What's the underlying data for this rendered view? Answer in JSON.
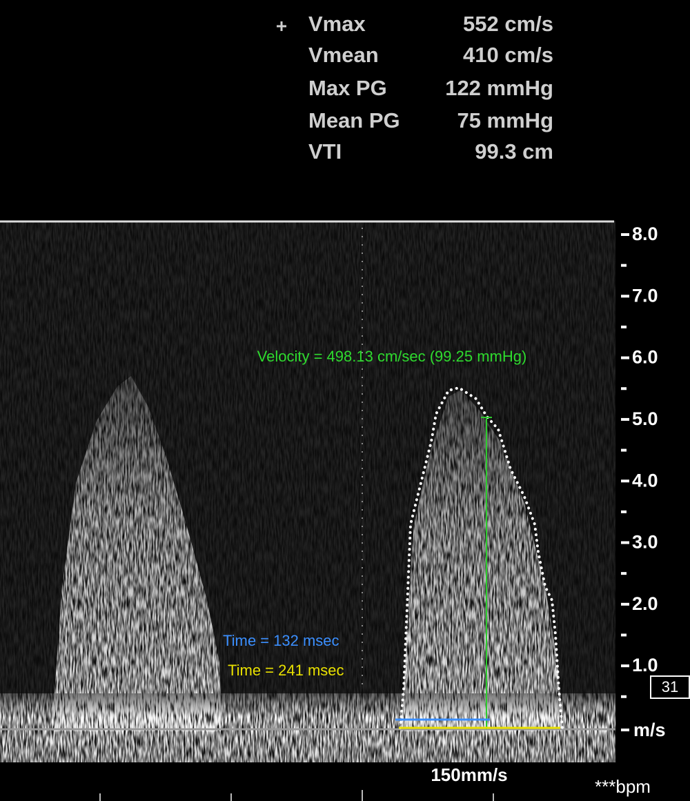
{
  "measurements": [
    {
      "label": "Vmax",
      "value": "552 cm/s"
    },
    {
      "label": "Vmean",
      "value": "410 cm/s"
    },
    {
      "label": "Max PG",
      "value": "122 mmHg"
    },
    {
      "label": "Mean PG",
      "value": "75 mmHg"
    },
    {
      "label": "VTI",
      "value": "99.3 cm"
    }
  ],
  "scale": {
    "ticks": [
      "8.0",
      "7.0",
      "6.0",
      "5.0",
      "4.0",
      "3.0",
      "2.0",
      "1.0"
    ],
    "unit": "m/s"
  },
  "annotations": {
    "velocity": "Velocity = 498.13 cm/sec (99.25 mmHg)",
    "time_blue": "Time = 132 msec",
    "time_yellow": "Time = 241 msec"
  },
  "footer": {
    "sweep_speed": "150mm/s",
    "heart_rate": "***bpm",
    "badge": "31"
  }
}
